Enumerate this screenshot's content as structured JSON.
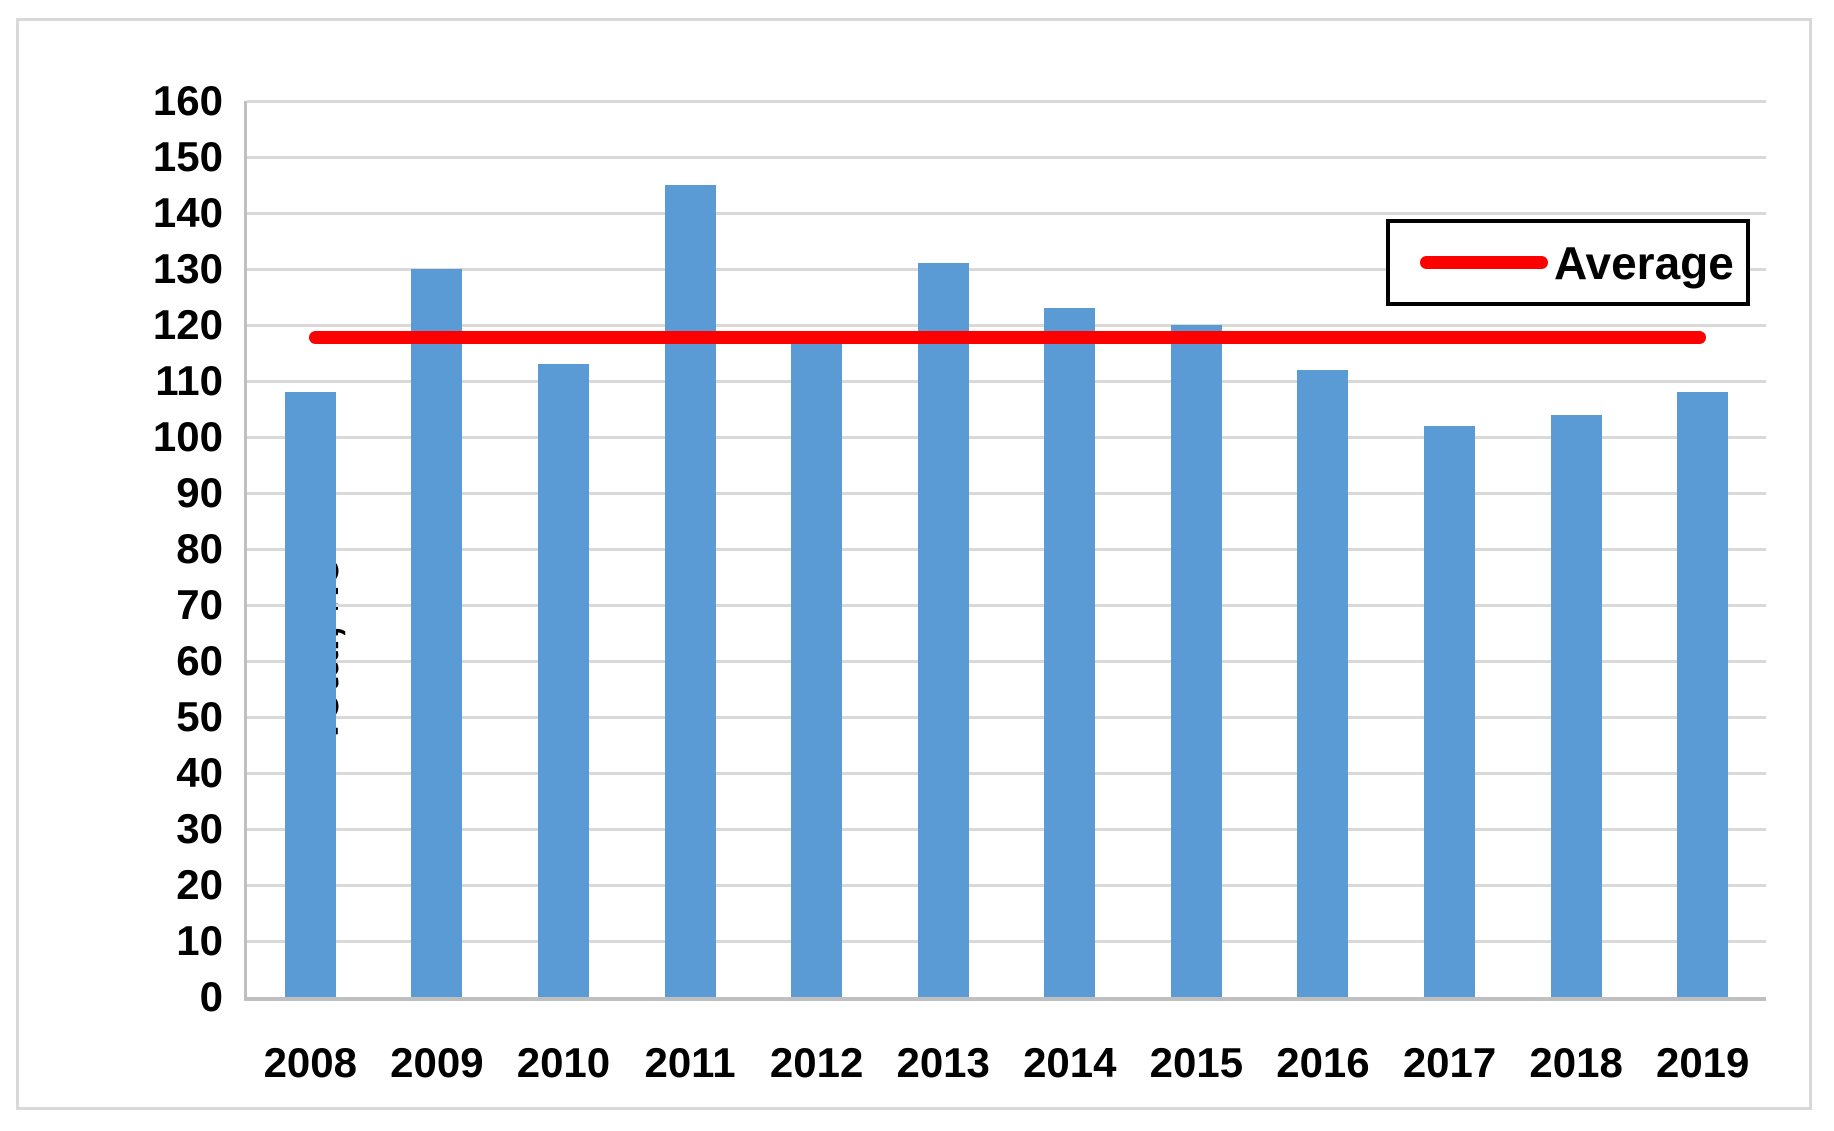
{
  "chart_data": {
    "type": "bar",
    "title": "",
    "categories": [
      "2008",
      "2009",
      "2010",
      "2011",
      "2012",
      "2013",
      "2014",
      "2015",
      "2016",
      "2017",
      "2018",
      "2019"
    ],
    "series": [
      {
        "name": "Total",
        "type": "bar",
        "values": [
          108,
          130,
          113,
          145,
          117,
          131,
          123,
          120,
          112,
          102,
          104,
          108
        ]
      },
      {
        "name": "Average",
        "type": "line",
        "value": 117.75
      }
    ],
    "xlabel": "",
    "ylabel": "Total, no",
    "ylim": [
      0,
      160
    ],
    "ytick_step": 10,
    "grid": true,
    "legend_position": "top-right"
  },
  "legend": {
    "label": "Average"
  },
  "colors": {
    "bar": "#5B9BD5",
    "average_line": "#FF0000",
    "gridline": "#D9D9D9",
    "axis": "#BFBFBF",
    "frame": "#D9D9D9",
    "text": "#000000"
  }
}
